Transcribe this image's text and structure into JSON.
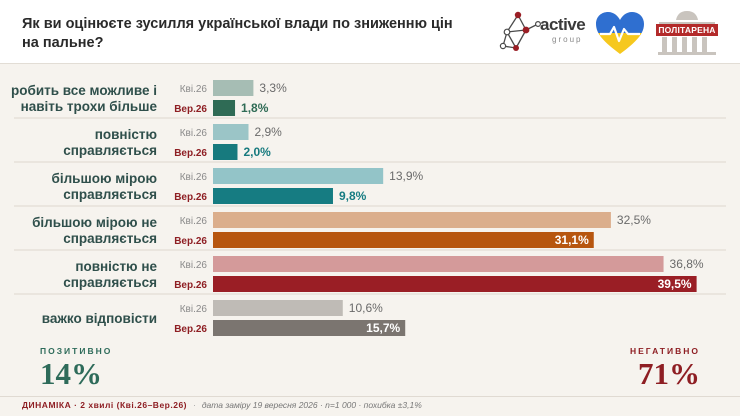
{
  "question": "Як ви оцінюєте зусилля української влади по зниженню цін на пальне?",
  "logos": {
    "active_word": "active",
    "group_word": "group",
    "politarena_word": "ПОЛІТАРЕНА"
  },
  "summary": {
    "positive_title": "ПОЗИТИВНО",
    "positive_value": "14%",
    "negative_title": "НЕГАТИВНО",
    "negative_value": "71%"
  },
  "footer": {
    "main": "ДИНАМІКА · 2 хвилі (Кві.26–Вер.26)",
    "sep": "·",
    "note": "дата заміру 19 вересня 2026 · n=1 000 · похибка ±3,1%"
  },
  "chart_data": {
    "type": "bar",
    "orientation": "horizontal",
    "waves": [
      "Кві.26",
      "Вер.26"
    ],
    "categories": [
      [
        "робить все можливе і",
        "навіть трохи більше"
      ],
      [
        "повністю",
        "справляється"
      ],
      [
        "більшою мірою",
        "справляється"
      ],
      [
        "більшою мірою не",
        "справляється"
      ],
      [
        "повністю не",
        "справляється"
      ],
      [
        "важко відповісти"
      ]
    ],
    "series": [
      {
        "name": "Кві.26",
        "values": [
          3.3,
          2.9,
          13.9,
          32.5,
          36.8,
          10.6
        ],
        "labels": [
          "3,3%",
          "2,9%",
          "13,9%",
          "32,5%",
          "36,8%",
          "10,6%"
        ]
      },
      {
        "name": "Вер.26",
        "values": [
          1.8,
          2.0,
          9.8,
          31.1,
          39.5,
          15.7
        ],
        "labels": [
          "1,8%",
          "2,0%",
          "9,8%",
          "31,1%",
          "39,5%",
          "15,7%"
        ]
      }
    ],
    "colors": {
      "apr": [
        "#a6bdb4",
        "#9bc5c7",
        "#93c4c8",
        "#dbae8c",
        "#d49a9a",
        "#bfbbb6"
      ],
      "sep": [
        "#2f6b55",
        "#177a7e",
        "#167c82",
        "#b7560f",
        "#9a1e25",
        "#7b7570"
      ],
      "sep_label": [
        "#2f6b55",
        "#177a7e",
        "#167c82",
        "#ffffff",
        "#ffffff",
        "#ffffff"
      ]
    },
    "xlim": [
      0,
      45
    ]
  }
}
